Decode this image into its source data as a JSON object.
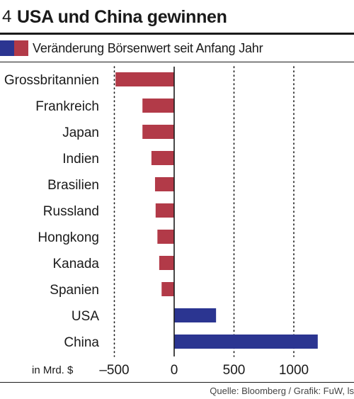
{
  "header": {
    "number": "4",
    "title": "USA und China gewinnen"
  },
  "legend": {
    "label": "Veränderung Börsenwert seit Anfang Jahr",
    "colors": [
      "#2b3591",
      "#b23a48"
    ]
  },
  "source": "Quelle: Bloomberg / Grafik: FuW, ls",
  "chart_data": {
    "type": "bar",
    "orientation": "horizontal",
    "categories": [
      "Grossbritannien",
      "Frankreich",
      "Japan",
      "Indien",
      "Brasilien",
      "Russland",
      "Hongkong",
      "Kanada",
      "Spanien",
      "USA",
      "China"
    ],
    "values": [
      -490,
      -265,
      -265,
      -190,
      -160,
      -155,
      -140,
      -125,
      -105,
      350,
      1200
    ],
    "xlim": [
      -550,
      1250
    ],
    "xticks": [
      -500,
      0,
      500,
      1000
    ],
    "xtick_labels": [
      "–500",
      "0",
      "500",
      "1000"
    ],
    "xlabel": "in Mrd. $",
    "gridlines": "dotted at -500, 500, 1000",
    "colors": {
      "negative": "#b23a48",
      "positive": "#2b3591"
    }
  }
}
